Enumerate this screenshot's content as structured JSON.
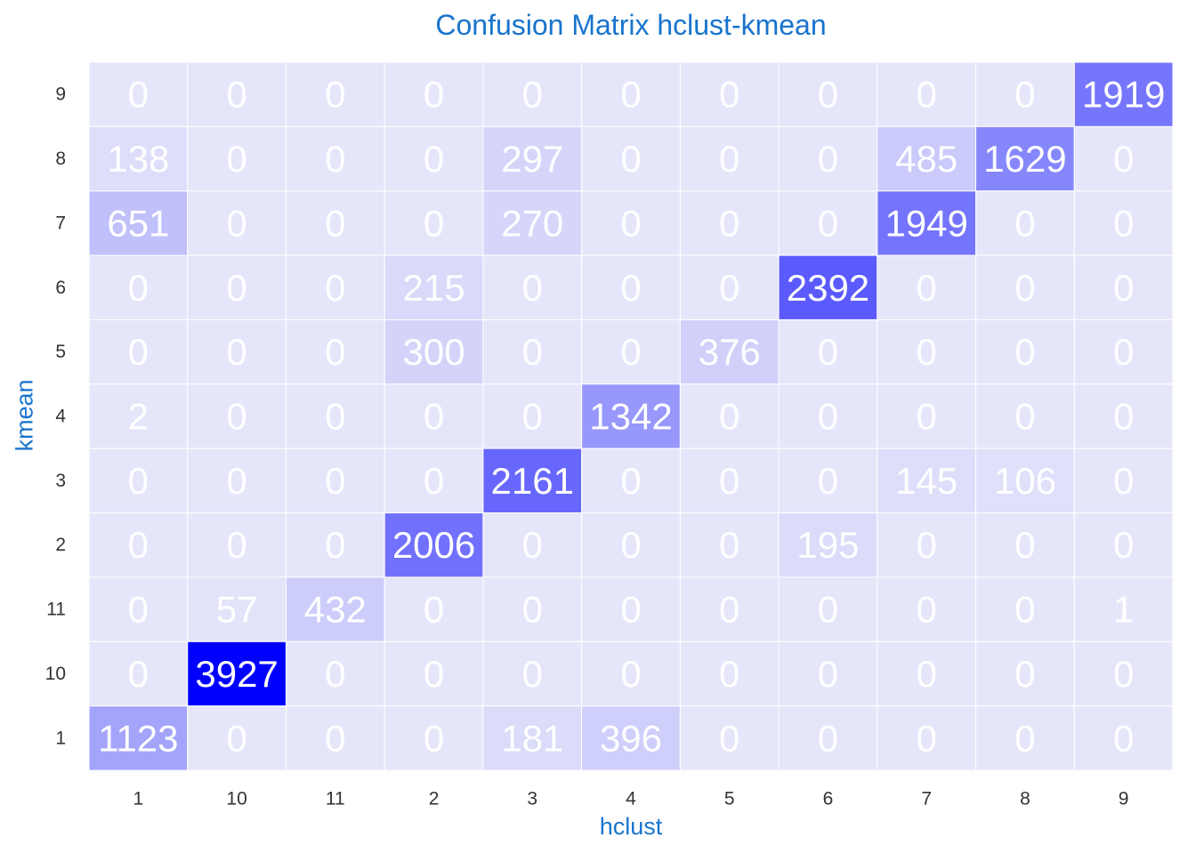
{
  "chart_data": {
    "type": "heatmap",
    "title": "Confusion Matrix hclust-kmean",
    "xlabel": "hclust",
    "ylabel": "kmean",
    "x_categories": [
      "1",
      "10",
      "11",
      "2",
      "3",
      "4",
      "5",
      "6",
      "7",
      "8",
      "9"
    ],
    "y_categories_top_to_bottom": [
      "9",
      "8",
      "7",
      "6",
      "5",
      "4",
      "3",
      "2",
      "11",
      "10",
      "1"
    ],
    "values": [
      [
        0,
        0,
        0,
        0,
        0,
        0,
        0,
        0,
        0,
        0,
        1919
      ],
      [
        138,
        0,
        0,
        0,
        297,
        0,
        0,
        0,
        485,
        1629,
        0
      ],
      [
        651,
        0,
        0,
        0,
        270,
        0,
        0,
        0,
        1949,
        0,
        0
      ],
      [
        0,
        0,
        0,
        215,
        0,
        0,
        0,
        2392,
        0,
        0,
        0
      ],
      [
        0,
        0,
        0,
        300,
        0,
        0,
        376,
        0,
        0,
        0,
        0
      ],
      [
        2,
        0,
        0,
        0,
        0,
        1342,
        0,
        0,
        0,
        0,
        0
      ],
      [
        0,
        0,
        0,
        0,
        2161,
        0,
        0,
        0,
        145,
        106,
        0
      ],
      [
        0,
        0,
        0,
        2006,
        0,
        0,
        0,
        195,
        0,
        0,
        0
      ],
      [
        0,
        57,
        432,
        0,
        0,
        0,
        0,
        0,
        0,
        0,
        1
      ],
      [
        0,
        3927,
        0,
        0,
        0,
        0,
        0,
        0,
        0,
        0,
        0
      ],
      [
        1123,
        0,
        0,
        0,
        181,
        396,
        0,
        0,
        0,
        0,
        0
      ]
    ],
    "color_low": "#e6e6fa",
    "color_high": "#0000ff",
    "cell_text_color": "#ffffff",
    "axis_text_color": "#333333",
    "title_color": "#1874cd",
    "grid": false,
    "legend": "none"
  }
}
